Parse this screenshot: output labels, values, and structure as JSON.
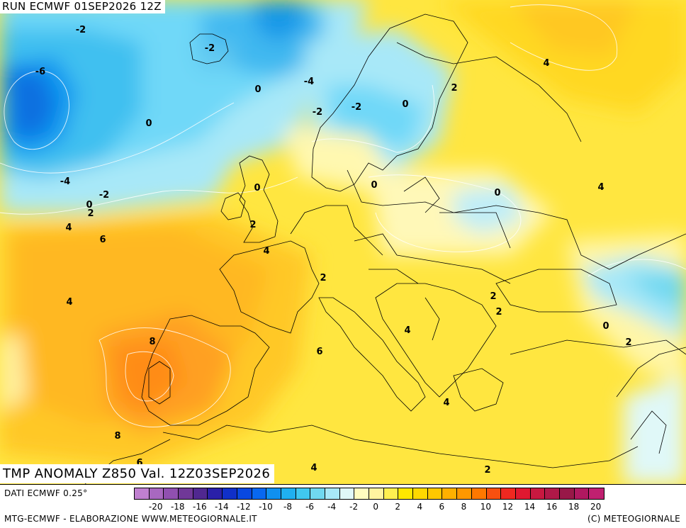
{
  "header": {
    "run_text": "RUN ECMWF 01SEP2026 12Z"
  },
  "map": {
    "title": "TMP ANOMALY Z850 Val. 12Z03SEP2026",
    "contour_labels": [
      "-2",
      "-2",
      "-6",
      "-4",
      "-2",
      "-2",
      "0",
      "0",
      "-4",
      "0",
      "0",
      "0",
      "-2",
      "0",
      "2",
      "4",
      "6",
      "4",
      "2",
      "4",
      "2",
      "2",
      "2",
      "4",
      "8",
      "6",
      "0",
      "2",
      "4",
      "8",
      "6",
      "4",
      "2",
      "4",
      "0",
      "4",
      "2"
    ]
  },
  "footer": {
    "data_source": "DATI ECMWF 0.25°",
    "credit_left": "MTG-ECMWF - ELABORAZIONE WWW.METEOGIORNALE.IT",
    "credit_right": "(C) METEOGIORNALE"
  },
  "legend": {
    "colors": [
      "#c080d0",
      "#a868c0",
      "#9050b0",
      "#703898",
      "#502890",
      "#2a20a8",
      "#1030c8",
      "#0848e0",
      "#0868f0",
      "#1090f0",
      "#20b0f0",
      "#40c8f0",
      "#70d8f0",
      "#a8e8f8",
      "#e0f8f8",
      "#fffcc0",
      "#fff4a0",
      "#fff050",
      "#ffe800",
      "#ffd800",
      "#ffc800",
      "#ffb000",
      "#ff9800",
      "#ff7800",
      "#f85010",
      "#f02820",
      "#e01830",
      "#c81840",
      "#b01848",
      "#981848",
      "#b01860",
      "#c02070"
    ],
    "tick_labels": [
      "-20",
      "-18",
      "-16",
      "-14",
      "-12",
      "-10",
      "-8",
      "-6",
      "-4",
      "-2",
      "0",
      "2",
      "4",
      "6",
      "8",
      "10",
      "12",
      "14",
      "16",
      "18",
      "20"
    ]
  }
}
